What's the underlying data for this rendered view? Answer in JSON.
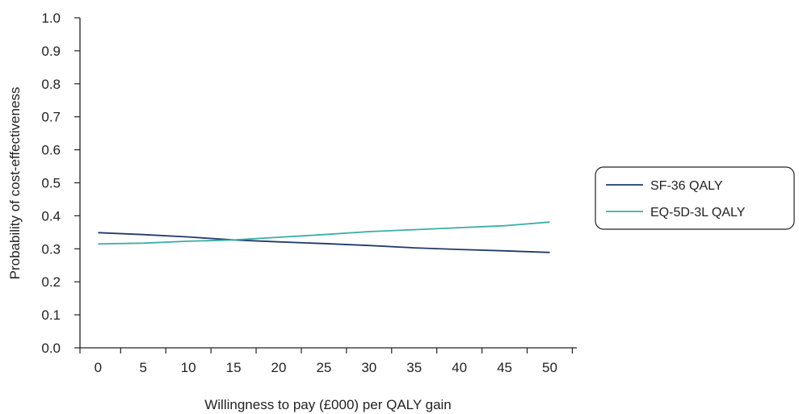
{
  "chart_data": {
    "type": "line",
    "title": "",
    "xlabel": "Willingness to pay (£000) per QALY gain",
    "ylabel": "Probability of cost-effectiveness",
    "xlim": [
      -2,
      53
    ],
    "ylim": [
      0,
      1
    ],
    "x_ticks": [
      0,
      5,
      10,
      15,
      20,
      25,
      30,
      35,
      40,
      45,
      50
    ],
    "x_tick_labels": [
      "0",
      "5",
      "10",
      "15",
      "20",
      "25",
      "30",
      "35",
      "40",
      "45",
      "50"
    ],
    "y_ticks": [
      0,
      0.1,
      0.2,
      0.3,
      0.4,
      0.5,
      0.6,
      0.7,
      0.8,
      0.9,
      1.0
    ],
    "y_tick_labels": [
      "0.0",
      "0.1",
      "0.2",
      "0.3",
      "0.4",
      "0.5",
      "0.6",
      "0.7",
      "0.8",
      "0.9",
      "1.0"
    ],
    "grid": false,
    "legend_position": "right",
    "series": [
      {
        "name": "SF-36 QALY",
        "color": "#1f3a6b",
        "x": [
          0,
          5,
          10,
          15,
          20,
          25,
          30,
          35,
          40,
          45,
          50
        ],
        "y": [
          0.349,
          0.343,
          0.336,
          0.327,
          0.321,
          0.316,
          0.31,
          0.303,
          0.298,
          0.294,
          0.289
        ]
      },
      {
        "name": "EQ-5D-3L QALY",
        "color": "#3aada8",
        "x": [
          0,
          5,
          10,
          15,
          20,
          25,
          30,
          35,
          40,
          45,
          50
        ],
        "y": [
          0.315,
          0.317,
          0.323,
          0.327,
          0.335,
          0.343,
          0.352,
          0.358,
          0.364,
          0.37,
          0.381
        ]
      }
    ]
  }
}
